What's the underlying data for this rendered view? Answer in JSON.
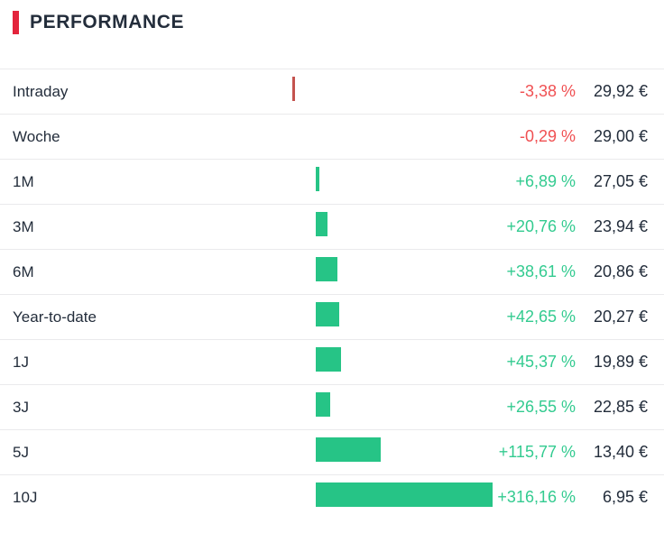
{
  "header": {
    "title": "PERFORMANCE"
  },
  "colors": {
    "accent": "#e3243c",
    "text_dark": "#232d3b",
    "separator": "#eaeaec",
    "positive_bar": "#26c486",
    "negative_bar": "#c4534f",
    "positive_text": "#33cb90",
    "negative_text": "#f05052"
  },
  "chart_data": {
    "type": "bar",
    "orientation": "horizontal",
    "title": "PERFORMANCE",
    "unit": "%",
    "categories": [
      "Intraday",
      "Woche",
      "1M",
      "3M",
      "6M",
      "Year-to-date",
      "1J",
      "3J",
      "5J",
      "10J"
    ],
    "values": [
      -3.38,
      -0.29,
      6.89,
      20.76,
      38.61,
      42.65,
      45.37,
      26.55,
      115.77,
      316.16
    ],
    "value_labels": [
      "-3,38 %",
      "-0,29 %",
      "+6,89 %",
      "+20,76 %",
      "+38,61 %",
      "+42,65 %",
      "+45,37 %",
      "+26,55 %",
      "+115,77 %",
      "+316,16 %"
    ],
    "secondary_values": [
      "29,92 €",
      "29,00 €",
      "27,05 €",
      "23,94 €",
      "20,86 €",
      "20,27 €",
      "19,89 €",
      "22,85 €",
      "13,40 €",
      "6,95 €"
    ],
    "xlim": [
      -3.38,
      316.16
    ],
    "grid": false,
    "legend": false,
    "bar_color_rule": "green when positive, red when negative"
  },
  "rows": [
    {
      "label": "Intraday",
      "pct": -3.38,
      "pct_label": "-3,38 %",
      "price": "29,92 €"
    },
    {
      "label": "Woche",
      "pct": -0.29,
      "pct_label": "-0,29 %",
      "price": "29,00 €"
    },
    {
      "label": "1M",
      "pct": 6.89,
      "pct_label": "+6,89 %",
      "price": "27,05 €"
    },
    {
      "label": "3M",
      "pct": 20.76,
      "pct_label": "+20,76 %",
      "price": "23,94 €"
    },
    {
      "label": "6M",
      "pct": 38.61,
      "pct_label": "+38,61 %",
      "price": "20,86 €"
    },
    {
      "label": "Year-to-date",
      "pct": 42.65,
      "pct_label": "+42,65 %",
      "price": "20,27 €"
    },
    {
      "label": "1J",
      "pct": 45.37,
      "pct_label": "+45,37 %",
      "price": "19,89 €"
    },
    {
      "label": "3J",
      "pct": 26.55,
      "pct_label": "+26,55 %",
      "price": "22,85 €"
    },
    {
      "label": "5J",
      "pct": 115.77,
      "pct_label": "+115,77 %",
      "price": "13,40 €"
    },
    {
      "label": "10J",
      "pct": 316.16,
      "pct_label": "+316,16 %",
      "price": "6,95 €"
    }
  ]
}
